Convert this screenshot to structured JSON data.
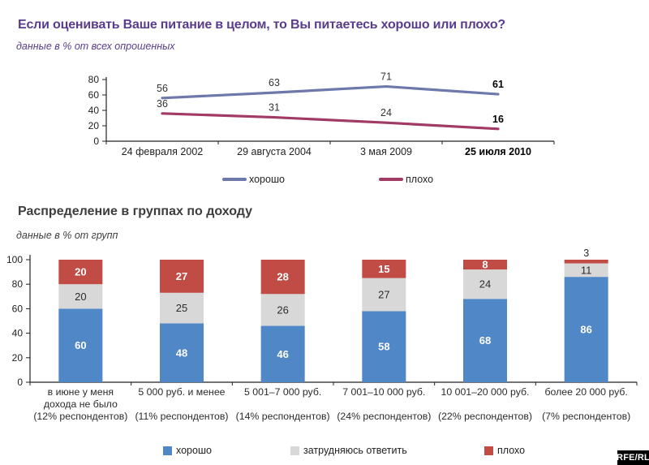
{
  "colors": {
    "title_purple": "#5a3c8c",
    "title_gray": "#3d3d3d",
    "good_line": "#6d78ab",
    "bad_line": "#a23a66",
    "good_bar": "#4f87c7",
    "neutral_bar": "#d8d8d8",
    "bad_bar": "#c14b45",
    "axis": "#222222"
  },
  "logo": {
    "text": "RFE/RL"
  },
  "chart_data": [
    {
      "type": "line",
      "title": "Если оценивать Ваше питание в целом, то Вы питаетесь хорошо или плохо?",
      "subtitle": "данные в % от всех опрошенных",
      "categories": [
        "24 февраля 2002",
        "29 августа 2004",
        "3 мая 2009",
        "25 июля 2010"
      ],
      "series": [
        {
          "key": "good",
          "name": "хорошо",
          "color": "#6d78ab",
          "values": [
            56,
            63,
            71,
            61
          ]
        },
        {
          "key": "bad",
          "name": "плохо",
          "color": "#a23a66",
          "values": [
            36,
            31,
            24,
            16
          ]
        }
      ],
      "ylim": [
        0,
        80
      ],
      "yticks": [
        0,
        20,
        40,
        60,
        80
      ],
      "grid": false,
      "legend_position": "bottom"
    },
    {
      "type": "bar",
      "stacked": true,
      "title": "Распределение в группах по доходу",
      "subtitle": "данные в % от групп",
      "categories": [
        {
          "name_lines": [
            "в июне у меня",
            "дохода не было"
          ],
          "pct": "(12% респондентов)"
        },
        {
          "name_lines": [
            "5 000 руб. и менее"
          ],
          "pct": "(11% респондентов)"
        },
        {
          "name_lines": [
            "5 001–7 000 руб."
          ],
          "pct": "(14% респондентов)"
        },
        {
          "name_lines": [
            "7 001–10 000 руб."
          ],
          "pct": "(24% респондентов)"
        },
        {
          "name_lines": [
            "10 001–20 000 руб."
          ],
          "pct": "(22% респондентов)"
        },
        {
          "name_lines": [
            "более 20 000 руб."
          ],
          "pct": "(7% респондентов)"
        }
      ],
      "series": [
        {
          "key": "good",
          "name": "хорошо",
          "color": "#4f87c7",
          "label_color": "#ffffff",
          "values": [
            60,
            48,
            46,
            58,
            68,
            86
          ]
        },
        {
          "key": "undecided",
          "name": "затрудняюсь ответить",
          "color": "#d8d8d8",
          "label_color": "#2b2b2b",
          "values": [
            20,
            25,
            26,
            27,
            24,
            11
          ]
        },
        {
          "key": "bad",
          "name": "плохо",
          "color": "#c14b45",
          "label_color": "#ffffff",
          "values": [
            20,
            27,
            28,
            15,
            8,
            3
          ]
        }
      ],
      "ylim": [
        0,
        100
      ],
      "yticks": [
        0,
        20,
        40,
        60,
        80,
        100
      ],
      "grid": false,
      "legend_position": "bottom"
    }
  ]
}
